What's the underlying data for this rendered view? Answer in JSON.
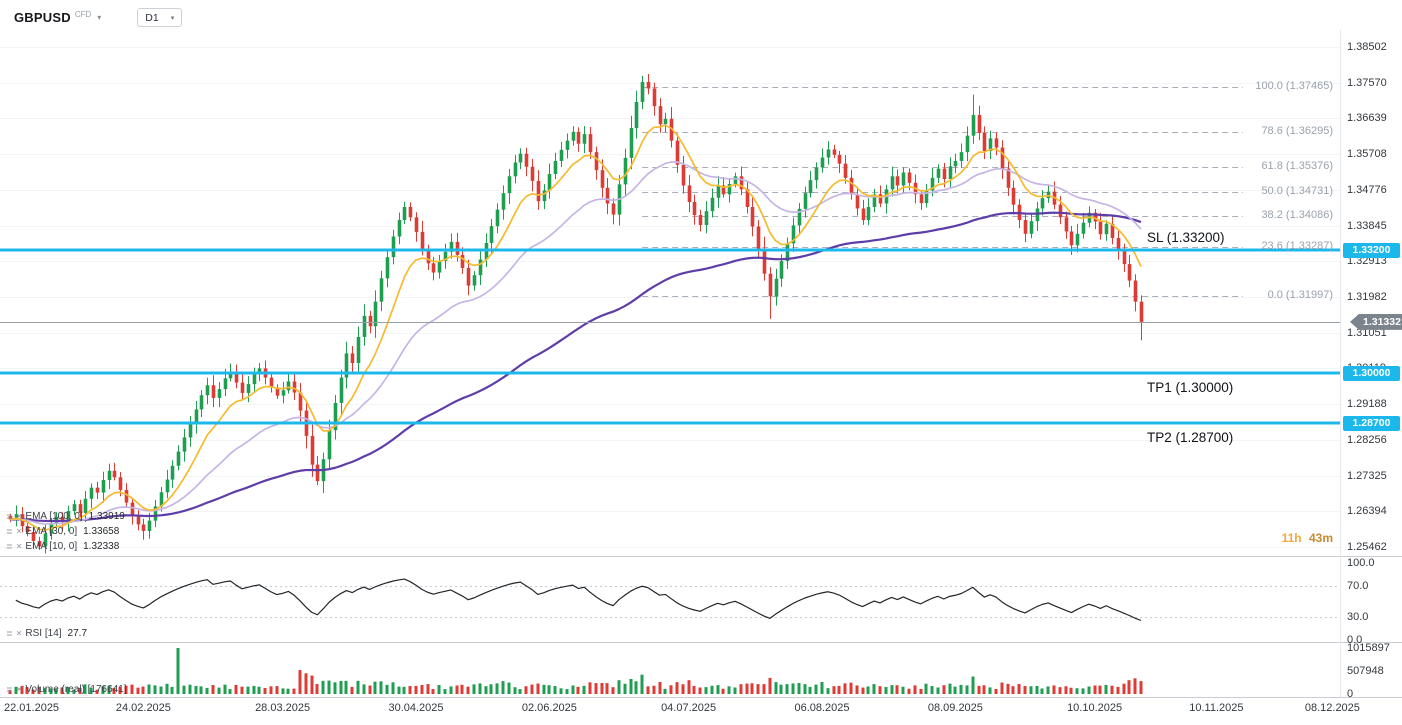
{
  "header": {
    "symbol": "GBPUSD",
    "instrument_type": "CFD",
    "timeframe": "D1"
  },
  "colors": {
    "up": "#1f9d51",
    "down": "#dd3b35",
    "ema10": "#f5bb2e",
    "ema30": "#c6b5e4",
    "ema100": "#5e3da8",
    "trade_line": "#1cb8ec",
    "fib_line": "#a9afb8",
    "rsi_line": "#22262a",
    "current_price_line": "#999fa6",
    "current_price_badge": "#7b838d"
  },
  "price_axis": {
    "labels": [
      "1.38502",
      "1.37570",
      "1.36639",
      "1.35708",
      "1.34776",
      "1.33845",
      "1.32913",
      "1.31982",
      "1.31051",
      "1.30119",
      "1.29188",
      "1.28256",
      "1.27325",
      "1.26394",
      "1.25462"
    ]
  },
  "time_axis": {
    "labels": [
      "22.01.2025",
      "24.02.2025",
      "28.03.2025",
      "30.04.2025",
      "02.06.2025",
      "04.07.2025",
      "06.08.2025",
      "08.09.2025",
      "10.10.2025",
      "10.11.2025",
      "08.12.2025"
    ],
    "tick_indices": [
      0,
      23,
      47,
      70,
      93,
      117,
      140,
      163,
      187,
      208,
      228
    ]
  },
  "fibonacci": {
    "levels": [
      {
        "label": "100.0 (1.37465)",
        "price": 1.37465
      },
      {
        "label": "78.6 (1.36295)",
        "price": 1.36295
      },
      {
        "label": "61.8 (1.35376)",
        "price": 1.35376
      },
      {
        "label": "50.0 (1.34731)",
        "price": 1.34731
      },
      {
        "label": "38.2 (1.34086)",
        "price": 1.34086
      },
      {
        "label": "23.6 (1.33287)",
        "price": 1.33287
      },
      {
        "label": "0.0 (1.31997)",
        "price": 1.31997
      }
    ]
  },
  "trade_levels": [
    {
      "name": "SL",
      "label": "SL (1.33200)",
      "price": 1.332,
      "badge": "1.33200"
    },
    {
      "name": "TP1",
      "label": "TP1 (1.30000)",
      "price": 1.3,
      "badge": "1.30000"
    },
    {
      "name": "TP2",
      "label": "TP2 (1.28700)",
      "price": 1.287,
      "badge": "1.28700"
    }
  ],
  "current_price": {
    "value": 1.31332,
    "badge": "1.31332"
  },
  "countdown": {
    "hours": "11h",
    "minutes": "43m"
  },
  "indicators": {
    "ema": [
      {
        "label": "EMA [100, 0]",
        "value": "1.33919"
      },
      {
        "label": "EMA [30, 0]",
        "value": "1.33658"
      },
      {
        "label": "EMA [10, 0]",
        "value": "1.32338"
      }
    ],
    "rsi": {
      "label": "RSI [14]",
      "value": "27.7",
      "axis_labels": [
        "100.0",
        "70.0",
        "30.0",
        "0.0"
      ],
      "levels": [
        70,
        30
      ]
    },
    "volume": {
      "label": "Volume (real) [176641]",
      "axis_labels": [
        "1015897",
        "507948",
        "0"
      ],
      "max": 1015897
    }
  },
  "chart_data": {
    "type": "candlestick",
    "symbol": "GBPUSD",
    "timeframe": "D1",
    "x_start": "22.01.2025",
    "x_end_visible": "08.12.2025",
    "y_min": 1.25462,
    "y_max": 1.38502,
    "closes": [
      1.2618,
      1.2632,
      1.2601,
      1.2585,
      1.2562,
      1.2548,
      1.2581,
      1.2609,
      1.2625,
      1.2611,
      1.264,
      1.2658,
      1.2635,
      1.2672,
      1.2701,
      1.2688,
      1.2721,
      1.2745,
      1.2728,
      1.2695,
      1.2662,
      1.2628,
      1.2605,
      1.2588,
      1.2615,
      1.2652,
      1.2689,
      1.2722,
      1.2758,
      1.2795,
      1.2832,
      1.2868,
      1.2905,
      1.2942,
      1.2968,
      1.2935,
      1.2958,
      1.2986,
      1.3004,
      1.2975,
      1.2948,
      1.2971,
      1.2996,
      1.3012,
      1.2988,
      1.2962,
      1.2941,
      1.2955,
      1.2978,
      1.2949,
      1.2902,
      1.2836,
      1.2761,
      1.2718,
      1.2775,
      1.2851,
      1.2922,
      1.2988,
      1.3051,
      1.3026,
      1.3094,
      1.3149,
      1.3122,
      1.3186,
      1.3247,
      1.3302,
      1.3356,
      1.3399,
      1.3433,
      1.3406,
      1.3368,
      1.3321,
      1.3286,
      1.3262,
      1.3292,
      1.3316,
      1.3342,
      1.3308,
      1.3274,
      1.3228,
      1.3255,
      1.3296,
      1.3339,
      1.3383,
      1.3426,
      1.3469,
      1.3513,
      1.3549,
      1.3572,
      1.3538,
      1.3501,
      1.3448,
      1.3476,
      1.3519,
      1.3553,
      1.3582,
      1.3606,
      1.3629,
      1.3598,
      1.3623,
      1.3576,
      1.3529,
      1.3483,
      1.3442,
      1.3413,
      1.3492,
      1.3561,
      1.3639,
      1.3707,
      1.3759,
      1.3742,
      1.3696,
      1.3649,
      1.3663,
      1.3606,
      1.3543,
      1.3489,
      1.3446,
      1.3412,
      1.3386,
      1.3422,
      1.3457,
      1.3489,
      1.3466,
      1.3493,
      1.3513,
      1.3479,
      1.3433,
      1.3382,
      1.3323,
      1.3259,
      1.32,
      1.3246,
      1.3292,
      1.3338,
      1.3385,
      1.3428,
      1.3469,
      1.3503,
      1.3536,
      1.3562,
      1.3583,
      1.3569,
      1.3546,
      1.3509,
      1.3466,
      1.3429,
      1.3399,
      1.3433,
      1.3466,
      1.3442,
      1.3479,
      1.3513,
      1.3489,
      1.3523,
      1.3496,
      1.3466,
      1.3443,
      1.3476,
      1.3509,
      1.3533,
      1.3506,
      1.3539,
      1.3553,
      1.3576,
      1.3619,
      1.3673,
      1.3626,
      1.3579,
      1.3612,
      1.3588,
      1.3533,
      1.3483,
      1.3439,
      1.3399,
      1.3363,
      1.3396,
      1.3429,
      1.3456,
      1.3473,
      1.3439,
      1.3406,
      1.3369,
      1.3333,
      1.3363,
      1.3392,
      1.3418,
      1.3395,
      1.3362,
      1.3389,
      1.3352,
      1.3321,
      1.3284,
      1.3241,
      1.3186,
      1.31332
    ],
    "wick_extremes": {
      "53": {
        "low": 1.2708
      },
      "109": {
        "high": 1.3775
      },
      "131": {
        "low": 1.3141
      },
      "166": {
        "high": 1.3726
      },
      "195": {
        "low": 1.3085
      }
    },
    "volume_spikes": {
      "29": 1,
      "50": 0.52,
      "51": 0.45,
      "52": 0.4,
      "85": 0.28,
      "105": 0.3,
      "109": 0.42,
      "117": 0.3,
      "131": 0.35,
      "140": 0.26,
      "166": 0.38,
      "193": 0.3,
      "194": 0.34,
      "195": 0.28
    },
    "overlays": [
      {
        "name": "EMA 10",
        "color": "#f5bb2e"
      },
      {
        "name": "EMA 30",
        "color": "#c6b5e4"
      },
      {
        "name": "EMA 100",
        "color": "#5e3da8"
      }
    ],
    "sub_panels": [
      {
        "name": "RSI",
        "period": 14,
        "last_value": 27.7,
        "levels": [
          70,
          30
        ],
        "range": [
          0,
          100
        ]
      },
      {
        "name": "Volume",
        "max": 1015897
      }
    ],
    "key_points": {
      "swing_high": 1.37465,
      "swing_low": 1.31997,
      "current": 1.31332,
      "sl": 1.332,
      "tp1": 1.3,
      "tp2": 1.287
    }
  }
}
